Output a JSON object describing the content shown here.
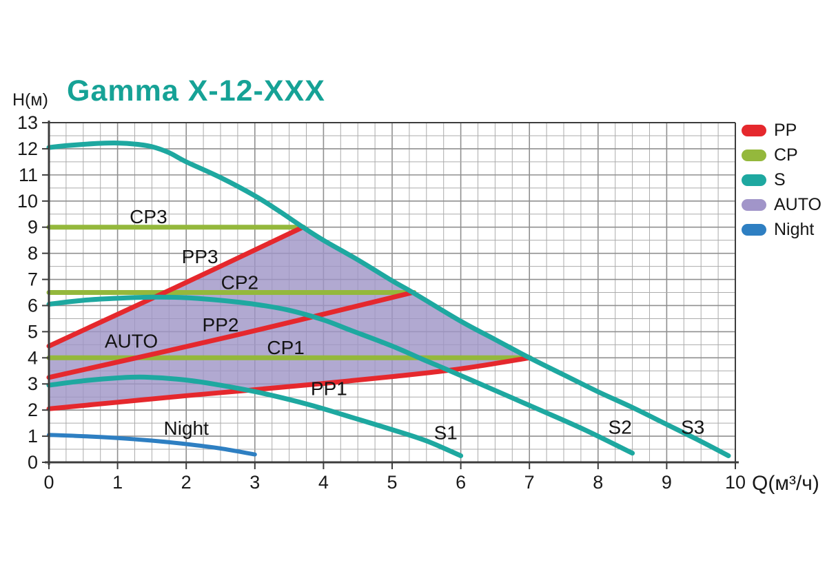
{
  "title": "Gamma X-12-XXX",
  "colors": {
    "title": "#16a296",
    "pp_red": "#e5282d",
    "cp_green": "#94b83c",
    "s_teal": "#1ea8a0",
    "auto_purple": "#9d93c6",
    "night_blue": "#2e7fc2",
    "grid_minor": "#ababab",
    "grid_major": "#8f8f8f",
    "axis": "#3c3c3c",
    "text": "#1a1a1a"
  },
  "legend": {
    "items": [
      {
        "label": "PP",
        "color": "#e5282d"
      },
      {
        "label": "CP",
        "color": "#94b83c"
      },
      {
        "label": "S",
        "color": "#1ea8a0"
      },
      {
        "label": "AUTO",
        "color": "#a195c9"
      },
      {
        "label": "Night",
        "color": "#2e7fc2"
      }
    ]
  },
  "chart_data": {
    "type": "line",
    "title": "Gamma X-12-XXX",
    "xlabel": "Q(м³/ч)",
    "ylabel": "H(м)",
    "xlim": [
      0,
      10
    ],
    "ylim": [
      0,
      13
    ],
    "x_ticks": [
      0,
      1,
      2,
      3,
      4,
      5,
      6,
      7,
      8,
      9,
      10
    ],
    "y_ticks": [
      0,
      1,
      2,
      3,
      4,
      5,
      6,
      7,
      8,
      9,
      10,
      11,
      12,
      13
    ],
    "grid": {
      "minor_x_step": 0.25,
      "minor_y_step": 0.5,
      "on": true
    },
    "legend_position": "top-right",
    "series": [
      {
        "name": "S3",
        "group": "S",
        "color": "#1ea8a0",
        "width": 7,
        "smooth": true,
        "points": [
          [
            0,
            12.05
          ],
          [
            0.25,
            12.12
          ],
          [
            0.5,
            12.17
          ],
          [
            0.75,
            12.21
          ],
          [
            1,
            12.22
          ],
          [
            1.25,
            12.18
          ],
          [
            1.5,
            12.08
          ],
          [
            1.75,
            11.85
          ],
          [
            2,
            11.5
          ],
          [
            2.5,
            10.9
          ],
          [
            3,
            10.2
          ],
          [
            3.35,
            9.62
          ],
          [
            3.7,
            9.0
          ],
          [
            4,
            8.5
          ],
          [
            4.5,
            7.75
          ],
          [
            5,
            6.95
          ],
          [
            5.3,
            6.5
          ],
          [
            6,
            5.4
          ],
          [
            6.5,
            4.7
          ],
          [
            7,
            4.0
          ],
          [
            7.5,
            3.35
          ],
          [
            8,
            2.7
          ],
          [
            8.5,
            2.1
          ],
          [
            9,
            1.45
          ],
          [
            9.5,
            0.8
          ],
          [
            9.9,
            0.25
          ]
        ]
      },
      {
        "name": "S2",
        "group": "S",
        "color": "#1ea8a0",
        "width": 7,
        "smooth": true,
        "points": [
          [
            0,
            6.05
          ],
          [
            0.5,
            6.2
          ],
          [
            1,
            6.28
          ],
          [
            1.5,
            6.32
          ],
          [
            2,
            6.3
          ],
          [
            2.5,
            6.2
          ],
          [
            3,
            6.05
          ],
          [
            3.5,
            5.82
          ],
          [
            4,
            5.45
          ],
          [
            4.4,
            5.05
          ],
          [
            5,
            4.45
          ],
          [
            5.5,
            3.88
          ],
          [
            5.8,
            3.55
          ],
          [
            6.5,
            2.75
          ],
          [
            7.2,
            1.95
          ],
          [
            7.8,
            1.25
          ],
          [
            8.5,
            0.35
          ]
        ]
      },
      {
        "name": "S1",
        "group": "S",
        "color": "#1ea8a0",
        "width": 7,
        "smooth": true,
        "points": [
          [
            0,
            2.95
          ],
          [
            0.5,
            3.12
          ],
          [
            1,
            3.23
          ],
          [
            1.4,
            3.26
          ],
          [
            2,
            3.15
          ],
          [
            2.5,
            2.95
          ],
          [
            3.1,
            2.65
          ],
          [
            3.8,
            2.2
          ],
          [
            4.5,
            1.65
          ],
          [
            5,
            1.25
          ],
          [
            5.5,
            0.82
          ],
          [
            6,
            0.25
          ]
        ]
      },
      {
        "name": "Night",
        "group": "Night",
        "color": "#2e7fc2",
        "width": 6,
        "smooth": true,
        "points": [
          [
            0,
            1.05
          ],
          [
            0.5,
            1.0
          ],
          [
            1,
            0.93
          ],
          [
            1.5,
            0.83
          ],
          [
            2,
            0.7
          ],
          [
            2.5,
            0.53
          ],
          [
            3,
            0.3
          ]
        ]
      },
      {
        "name": "PP3",
        "group": "PP",
        "color": "#e5282d",
        "width": 7,
        "smooth": true,
        "points": [
          [
            0,
            4.45
          ],
          [
            1.85,
            6.7
          ],
          [
            3.7,
            9.0
          ]
        ]
      },
      {
        "name": "PP2",
        "group": "PP",
        "color": "#e5282d",
        "width": 7,
        "smooth": true,
        "points": [
          [
            0,
            3.25
          ],
          [
            2.65,
            4.82
          ],
          [
            5.3,
            6.5
          ]
        ]
      },
      {
        "name": "PP1",
        "group": "PP",
        "color": "#e5282d",
        "width": 7,
        "smooth": true,
        "points": [
          [
            0,
            2.05
          ],
          [
            1,
            2.3
          ],
          [
            2,
            2.55
          ],
          [
            3,
            2.78
          ],
          [
            4,
            3.02
          ],
          [
            5,
            3.28
          ],
          [
            6,
            3.58
          ],
          [
            7,
            4.0
          ]
        ]
      },
      {
        "name": "CP3",
        "group": "CP",
        "color": "#94b83c",
        "width": 7,
        "smooth": false,
        "points": [
          [
            0,
            9.0
          ],
          [
            3.71,
            9.0
          ]
        ]
      },
      {
        "name": "CP2",
        "group": "CP",
        "color": "#94b83c",
        "width": 7,
        "smooth": false,
        "points": [
          [
            0,
            6.5
          ],
          [
            5.32,
            6.5
          ]
        ]
      },
      {
        "name": "CP1",
        "group": "CP",
        "color": "#94b83c",
        "width": 7,
        "smooth": false,
        "points": [
          [
            0,
            4.0
          ],
          [
            7.01,
            4.0
          ]
        ]
      }
    ],
    "region": {
      "name": "AUTO",
      "fill": "#9d93c6",
      "opacity": 0.8,
      "upper_series": "PP3",
      "right_series": "S3",
      "right_from": 3.7,
      "right_to": 7.0,
      "lower_series": "PP1"
    },
    "annotations": [
      {
        "text": "CP3",
        "x": 1.45,
        "y": 9.42
      },
      {
        "text": "PP3",
        "x": 2.2,
        "y": 7.88
      },
      {
        "text": "CP2",
        "x": 2.78,
        "y": 6.9
      },
      {
        "text": "PP2",
        "x": 2.5,
        "y": 5.28
      },
      {
        "text": "AUTO",
        "x": 1.2,
        "y": 4.66
      },
      {
        "text": "CP1",
        "x": 3.45,
        "y": 4.4
      },
      {
        "text": "PP1",
        "x": 4.08,
        "y": 2.84
      },
      {
        "text": "Night",
        "x": 2.0,
        "y": 1.32
      },
      {
        "text": "S1",
        "x": 5.78,
        "y": 1.15
      },
      {
        "text": "S2",
        "x": 8.32,
        "y": 1.36
      },
      {
        "text": "S3",
        "x": 9.38,
        "y": 1.36
      }
    ]
  }
}
